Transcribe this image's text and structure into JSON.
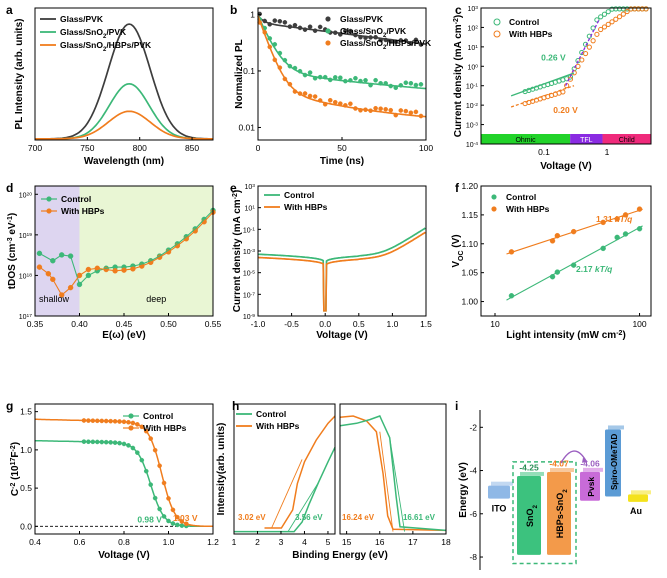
{
  "colors": {
    "pvk": "#3d3d3d",
    "control": "#3cb878",
    "hbps": "#f07d1e",
    "purple": "#9b5fc0",
    "shallow_bg": "#ddd5f0",
    "deep_bg": "#e9f6d4",
    "ohmic": "#22d32a",
    "tfl": "#8a2be2",
    "child": "#ef2a7b"
  },
  "chart_data": [
    {
      "panel": "a",
      "type": "line",
      "xlabel": "Wavelength (nm)",
      "ylabel": "PL Intensity (arb. units)",
      "xlim": [
        700,
        870
      ],
      "ylim": [
        0,
        1.15
      ],
      "xticks": [
        "700",
        "750",
        "800",
        "850"
      ],
      "series": [
        {
          "name": "Glass/PVK",
          "color": "#3d3d3d",
          "peak": 790,
          "amp": 1.0,
          "sigma": 20
        },
        {
          "name": "Glass/SnO2/PVK",
          "color": "#3cb878",
          "peak": 790,
          "amp": 0.48,
          "sigma": 19
        },
        {
          "name": "Glass/SnO2/HBPs/PVK",
          "color": "#f07d1e",
          "peak": 790,
          "amp": 0.24,
          "sigma": 20
        }
      ]
    },
    {
      "panel": "b",
      "type": "scatter",
      "xlabel": "Time (ns)",
      "ylabel": "Normalized PL",
      "xlim": [
        0,
        100
      ],
      "ylim": [
        0.006,
        1.3
      ],
      "yscale": "log",
      "xticks": [
        "0",
        "50",
        "100"
      ],
      "yticks": [
        "0.01",
        "0.1",
        "1"
      ],
      "series": [
        {
          "name": "Glass/PVK",
          "color": "#3d3d3d",
          "a1": 0.25,
          "t1": 3,
          "a2": 0.75,
          "t2": 115,
          "c": 0
        },
        {
          "name": "Glass/SnO2/PVK",
          "color": "#3cb878",
          "a1": 0.9,
          "t1": 6,
          "a2": 0.08,
          "t2": 90,
          "c": 0.025
        },
        {
          "name": "Glass/SnO2/HBPs/PVK",
          "color": "#f07d1e",
          "a1": 0.94,
          "t1": 5,
          "a2": 0.04,
          "t2": 45,
          "c": 0.012
        }
      ]
    },
    {
      "panel": "c",
      "type": "scatter",
      "xlabel": "Voltage (V)",
      "ylabel": "Current density (mA cm-2)",
      "xlim": [
        0.01,
        5
      ],
      "ylim": [
        0.0001,
        1000
      ],
      "xscale": "log",
      "yscale": "log",
      "xticks": [
        "0.1",
        "1"
      ],
      "yticks": [
        "10-4",
        "10-3",
        "10-2",
        "10-1",
        "100",
        "101",
        "102",
        "103"
      ],
      "legend": [
        "Control",
        "With HBPs"
      ],
      "annotations": [
        "0.26 V",
        "0.20 V"
      ],
      "regions": [
        "Ohmic",
        "TFL",
        "Child"
      ]
    },
    {
      "panel": "d",
      "type": "scatter",
      "xlabel": "E(ω) (eV)",
      "ylabel": "tDOS (cm-3 eV-1)",
      "xlim": [
        0.35,
        0.55
      ],
      "ylim": [
        1e+17,
        1.6e+20
      ],
      "yscale": "log",
      "xticks": [
        "0.35",
        "0.40",
        "0.45",
        "0.50",
        "0.55"
      ],
      "yticks": [
        "1017",
        "1018",
        "1019",
        "1020"
      ],
      "legend": [
        "Control",
        "With HBPs"
      ],
      "region_labels": [
        "shallow",
        "deep"
      ],
      "control": {
        "x": [
          0.355,
          0.37,
          0.38,
          0.39,
          0.4,
          0.41,
          0.42,
          0.43,
          0.44,
          0.45,
          0.46,
          0.47,
          0.48,
          0.49,
          0.5,
          0.51,
          0.52,
          0.53,
          0.54,
          0.55
        ],
        "y": [
          3.5e+18,
          2.3e+18,
          3.2e+18,
          3e+18,
          6e+17,
          1e+18,
          1.3e+18,
          1.5e+18,
          1.6e+18,
          1.6e+18,
          1.7e+18,
          1.9e+18,
          2.3e+18,
          3e+18,
          4.2e+18,
          6e+18,
          9e+18,
          1.4e+19,
          2.4e+19,
          4e+19
        ]
      },
      "hbps": {
        "x": [
          0.355,
          0.365,
          0.37,
          0.38,
          0.39,
          0.4,
          0.41,
          0.42,
          0.43,
          0.44,
          0.45,
          0.46,
          0.47,
          0.48,
          0.49,
          0.5,
          0.51,
          0.52,
          0.53,
          0.54,
          0.55
        ],
        "y": [
          1.6e+18,
          1.1e+18,
          8e+17,
          3.3e+17,
          5e+17,
          1e+18,
          1.4e+18,
          1.5e+18,
          1.4e+18,
          1.3e+18,
          1.35e+18,
          1.45e+18,
          1.7e+18,
          2.1e+18,
          2.8e+18,
          3.8e+18,
          5.4e+18,
          8e+18,
          1.25e+19,
          2.1e+19,
          3.6e+19
        ]
      }
    },
    {
      "panel": "e",
      "type": "line",
      "xlabel": "Voltage (V)",
      "ylabel": "Current density (mA cm-2)",
      "xlim": [
        -1.0,
        1.5
      ],
      "ylim": [
        1e-09,
        1000
      ],
      "yscale": "log",
      "xticks": [
        "-1.0",
        "-0.5",
        "0.0",
        "0.5",
        "1.0",
        "1.5"
      ],
      "yticks": [
        "10-9",
        "10-7",
        "10-5",
        "10-3",
        "10-1",
        "101",
        "103"
      ],
      "series": [
        {
          "name": "Control",
          "color": "#3cb878",
          "j0": 0.0005,
          "on": 0.95
        },
        {
          "name": "With HBPs",
          "color": "#f07d1e",
          "j0": 0.00025,
          "on": 1.05
        }
      ]
    },
    {
      "panel": "f",
      "type": "scatter",
      "xlabel": "Light intensity (mW cm-2)",
      "ylabel": "VOC (V)",
      "xlim": [
        8,
        120
      ],
      "ylim": [
        0.975,
        1.2
      ],
      "xscale": "log",
      "xticks": [
        "10",
        "100"
      ],
      "yticks": [
        "1.00",
        "1.05",
        "1.10",
        "1.15",
        "1.20"
      ],
      "legend": [
        "Control",
        "With HBPs"
      ],
      "slopes": [
        "1.31 kT/q",
        "2.17 kT/q"
      ],
      "control": {
        "x": [
          13,
          25,
          27,
          35,
          56,
          70,
          80,
          100
        ],
        "y": [
          1.01,
          1.043,
          1.051,
          1.063,
          1.092,
          1.111,
          1.117,
          1.126
        ]
      },
      "hbps": {
        "x": [
          13,
          25,
          27,
          35,
          56,
          70,
          80,
          100
        ],
        "y": [
          1.086,
          1.105,
          1.114,
          1.121,
          1.137,
          1.143,
          1.15,
          1.16
        ]
      }
    },
    {
      "panel": "g",
      "type": "line",
      "xlabel": "Voltage (V)",
      "ylabel": "C-2 (1017F-2)",
      "xlim": [
        0.4,
        1.2
      ],
      "ylim": [
        -0.1,
        1.6
      ],
      "xticks": [
        "0.4",
        "0.6",
        "0.8",
        "1.0",
        "1.2"
      ],
      "yticks": [
        "0.0",
        "0.5",
        "1.0",
        "1.5"
      ],
      "legend": [
        "Control",
        "With HBPs"
      ],
      "annotations": [
        "0.98 V",
        "1.03 V"
      ],
      "series": [
        {
          "name": "Control",
          "color": "#3cb878",
          "plateau": 1.12,
          "v50": 0.92,
          "w": 0.03
        },
        {
          "name": "With HBPs",
          "color": "#f07d1e",
          "plateau": 1.4,
          "v50": 0.97,
          "w": 0.03
        }
      ]
    },
    {
      "panel": "h",
      "type": "line",
      "xlabel": "Binding Energy (eV)",
      "ylabel": "Intensity(arb. units)",
      "xticks_left": [
        "1",
        "2",
        "3",
        "4",
        "5"
      ],
      "xticks_right": [
        "15",
        "16",
        "17",
        "18"
      ],
      "legend": [
        "Control",
        "With HBPs"
      ],
      "annotations": [
        "3.02 eV",
        "3.56 eV",
        "16.24 eV",
        "16.61 eV"
      ]
    },
    {
      "panel": "i",
      "type": "diagram",
      "ylabel": "Energy (eV)",
      "yticks": [
        "-2",
        "-4",
        "-6",
        "-8"
      ],
      "layers": [
        "ITO",
        "SnO2",
        "HBPs-SnO2",
        "Pvsk",
        "Spiro-OMeTAD",
        "Au"
      ],
      "levels": [
        "-4.25",
        "-4.07",
        "-4.06"
      ]
    }
  ]
}
